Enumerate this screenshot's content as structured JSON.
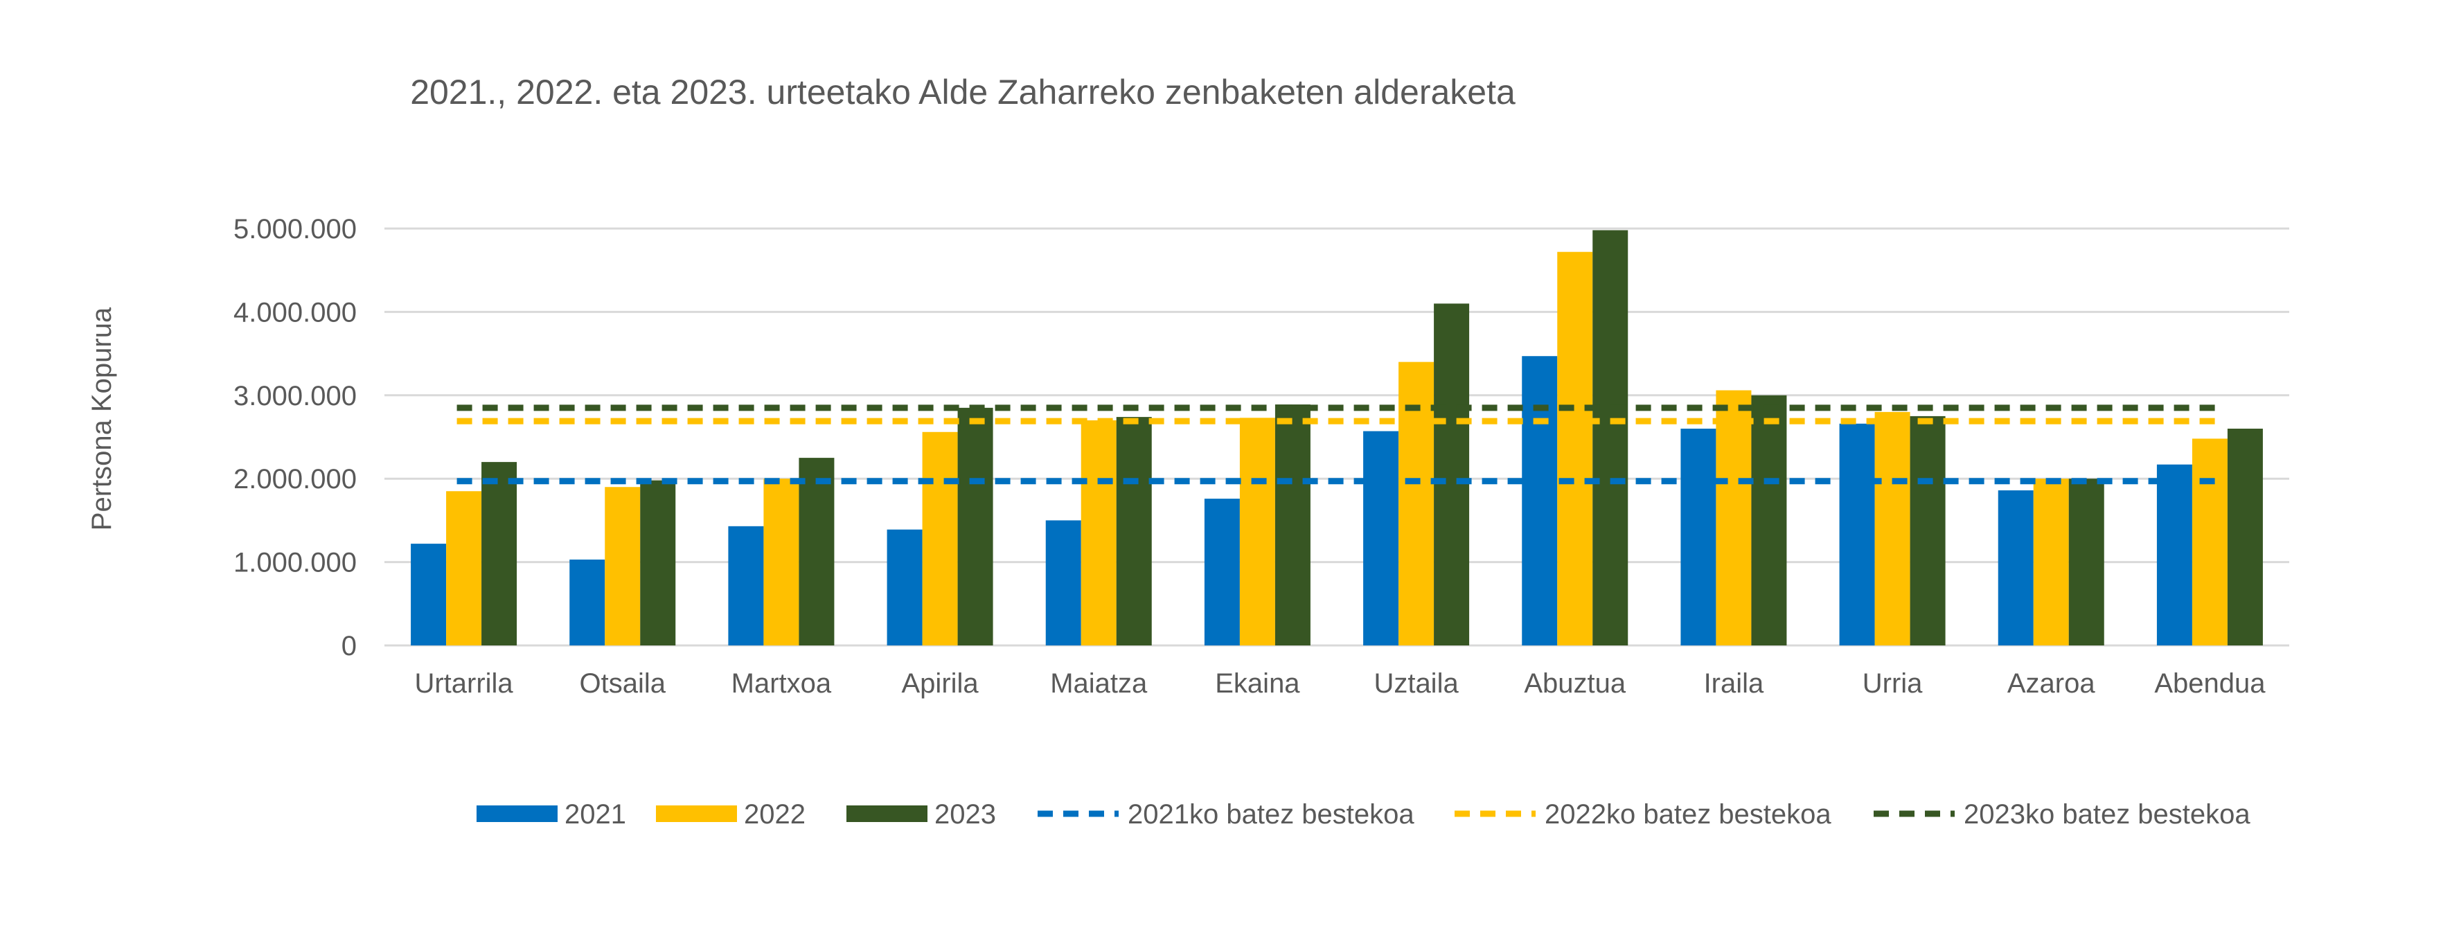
{
  "chart_data": {
    "type": "bar",
    "title": "2021., 2022. eta 2023. urteetako Alde Zaharreko zenbaketen alderaketa",
    "xlabel": "",
    "ylabel": "Pertsona Kopurua",
    "ylim": [
      0,
      5000000
    ],
    "yticks": [
      0,
      1000000,
      2000000,
      3000000,
      4000000,
      5000000
    ],
    "ytick_labels": [
      "0",
      "1.000.000",
      "2.000.000",
      "3.000.000",
      "4.000.000",
      "5.000.000"
    ],
    "grid": true,
    "legend_position": "bottom",
    "categories": [
      "Urtarrila",
      "Otsaila",
      "Martxoa",
      "Apirila",
      "Maiatza",
      "Ekaina",
      "Uztaila",
      "Abuztua",
      "Iraila",
      "Urria",
      "Azaroa",
      "Abendua"
    ],
    "series": [
      {
        "name": "2021",
        "color": "#0070c0",
        "values": [
          1220000,
          1030000,
          1430000,
          1390000,
          1500000,
          1760000,
          2570000,
          3470000,
          2600000,
          2660000,
          1860000,
          2170000
        ]
      },
      {
        "name": "2022",
        "color": "#ffc000",
        "values": [
          1850000,
          1900000,
          2000000,
          2560000,
          2700000,
          2730000,
          3400000,
          4720000,
          3060000,
          2800000,
          2000000,
          2480000
        ]
      },
      {
        "name": "2023",
        "color": "#375623",
        "values": [
          2200000,
          1980000,
          2250000,
          2850000,
          2740000,
          2890000,
          4100000,
          4980000,
          3000000,
          2750000,
          2000000,
          2600000
        ]
      }
    ],
    "averages": [
      {
        "name": "2021ko batez bestekoa",
        "color": "#0070c0",
        "value": 1970000
      },
      {
        "name": "2022ko batez bestekoa",
        "color": "#ffc000",
        "value": 2690000
      },
      {
        "name": "2023ko batez bestekoa",
        "color": "#375623",
        "value": 2850000
      }
    ]
  }
}
